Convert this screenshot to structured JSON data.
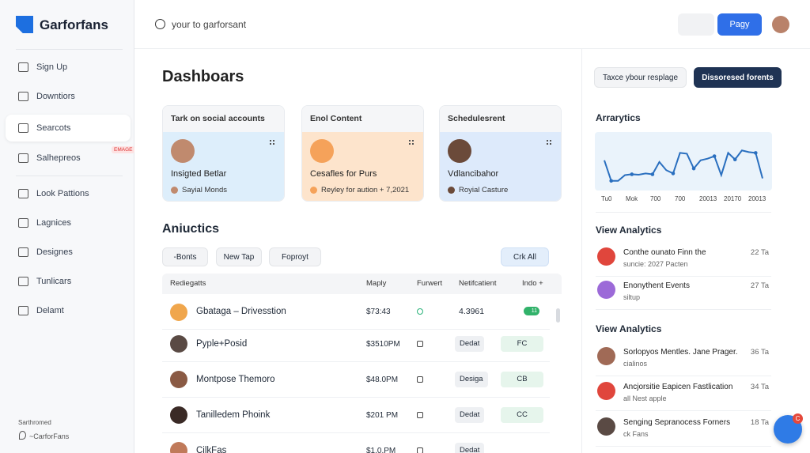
{
  "brand": "Garforfans",
  "search": "your to garforsant",
  "header_button": "Pagy",
  "nav": [
    {
      "label": "Sign Up"
    },
    {
      "label": "Downtiors"
    },
    {
      "label": "Searcots",
      "active": true
    },
    {
      "label": "Salhepreos",
      "badge": "EMAGE"
    },
    {
      "label": "Look Pattions"
    },
    {
      "label": "Lagnices"
    },
    {
      "label": "Designes"
    },
    {
      "label": "Tunlicars"
    },
    {
      "label": "Delamt"
    }
  ],
  "sidebar_footer": {
    "title": "Sarthromed",
    "link": "~CarforFans"
  },
  "page_title": "Dashboars",
  "top_buttons": [
    "Taxce ybour resplage",
    "Dissoresed forents"
  ],
  "cards": [
    {
      "title": "Tark on social accounts",
      "name": "Insigted Betlar",
      "sub": "Sayial Monds"
    },
    {
      "title": "Enol Content",
      "name": "Cesafles for Purs",
      "sub": "Reyley for aution + 7,2021"
    },
    {
      "title": "Schedulesrent",
      "name": "Vdlancibahor",
      "sub": "Royial Casture"
    }
  ],
  "section_title": "Aniuctics",
  "filters": [
    "-Bonts",
    "New Tap",
    "Foproyt"
  ],
  "filter_right": "Crk All",
  "table": {
    "headers": [
      "Rediegatts",
      "Maply",
      "Furwert",
      "Netifcatient",
      "Indo +"
    ],
    "rows": [
      [
        "Gbataga – Drivesstion",
        "$73:43",
        "4.3961",
        "11"
      ],
      [
        "Pyple+Posid",
        "$3510PM",
        "Dedat",
        "FC"
      ],
      [
        "Montpose Themoro",
        "$48.0PM",
        "Desiga",
        "CB"
      ],
      [
        "Tanilledem Phoink",
        "$201 PM",
        "Dedat",
        "CC"
      ],
      [
        "CilkFas",
        "$1.0.PM",
        "Dedat",
        ""
      ]
    ]
  },
  "analytics": {
    "title": "Arrarytics",
    "axis_labels": [
      "Tu0",
      "Mok",
      "700",
      "700",
      "20013",
      "20170",
      "20013"
    ],
    "values": [
      62,
      12,
      12,
      26,
      28,
      27,
      30,
      28,
      58,
      38,
      30,
      80,
      78,
      42,
      62,
      66,
      72,
      26,
      80,
      64,
      86,
      82,
      80,
      18
    ],
    "ylim": [
      0,
      100
    ]
  },
  "lists": [
    {
      "title": "View Analytics",
      "items": [
        {
          "title": "Conthe ounato Finn the",
          "sub": "suncie: 2027 Pacten",
          "time": "22 Ta"
        },
        {
          "title": "Enonythent Events",
          "sub": "siltup",
          "time": "27 Ta"
        }
      ]
    },
    {
      "title": "View Analytics",
      "items": [
        {
          "title": "Sorlopyos Mentles. Jane Prager.",
          "sub": "cialinos",
          "time": "36 Ta"
        },
        {
          "title": "Ancjorsitie Eapicen Fastlication",
          "sub": "all Nest apple",
          "time": "34 Ta"
        },
        {
          "title": "Senging Sepranocess Forners",
          "sub": "ck Fans",
          "time": "18 Ta"
        }
      ]
    }
  ],
  "chat_badge": "C"
}
